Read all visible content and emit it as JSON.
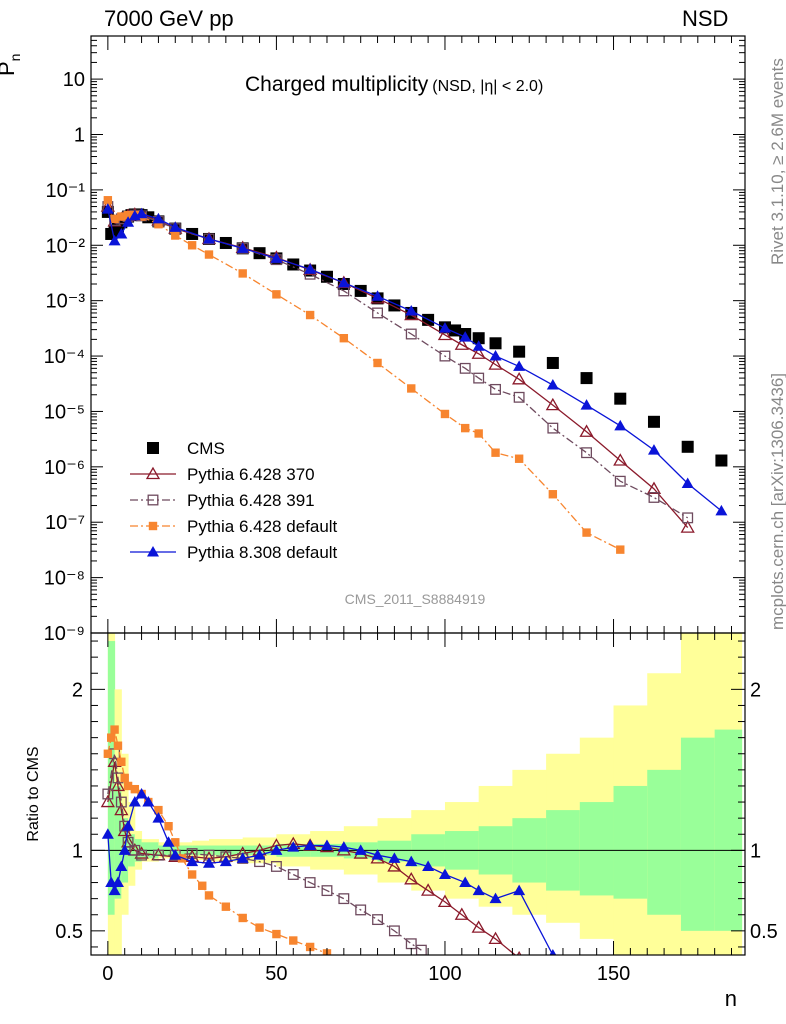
{
  "header": {
    "left": "7000 GeV pp",
    "right": "NSD",
    "side_top": "Rivet 3.1.10, ≥ 2.6M events",
    "side_bottom": "mcplots.cern.ch [arXiv:1306.3436]"
  },
  "colors": {
    "cms": "#000000",
    "py370": "#8b1a2b",
    "py391": "#6e4a5e",
    "py6def": "#f7852f",
    "py8": "#0a14d8",
    "band_inner": "#99ff99",
    "band_outer": "#ffff99"
  },
  "chart_data": [
    {
      "type": "scatter",
      "title": "Charged multiplicity",
      "title_sub": "(NSD, |η| < 2.0)",
      "ylabel": "P",
      "ylabel_sub": "n",
      "xlabel": "n",
      "log_y": true,
      "xlim": [
        -5,
        189
      ],
      "ylim": [
        1e-09,
        60
      ],
      "ytick_labels": [
        "10",
        "1",
        "10⁻¹",
        "10⁻²",
        "10⁻³",
        "10⁻⁴",
        "10⁻⁵",
        "10⁻⁶",
        "10⁻⁷",
        "10⁻⁸",
        "10⁻⁹"
      ],
      "watermark": "CMS_2011_S8884919",
      "legend_position": "lower-left",
      "series": [
        {
          "name": "CMS",
          "key": "cms",
          "marker": "filled-square",
          "x": [
            0,
            1,
            2,
            3,
            4,
            5,
            6,
            7,
            8,
            9,
            10,
            12,
            15,
            20,
            25,
            30,
            35,
            40,
            45,
            50,
            55,
            60,
            65,
            70,
            75,
            80,
            85,
            90,
            95,
            100,
            103,
            106,
            110,
            115,
            122,
            132,
            142,
            152,
            162,
            172,
            182
          ],
          "y": [
            0.04,
            0.016,
            0.018,
            0.022,
            0.026,
            0.03,
            0.033,
            0.035,
            0.036,
            0.036,
            0.035,
            0.032,
            0.027,
            0.02,
            0.016,
            0.013,
            0.011,
            0.0088,
            0.0072,
            0.0058,
            0.0045,
            0.0035,
            0.0027,
            0.002,
            0.0015,
            0.0011,
            0.00082,
            0.0006,
            0.00045,
            0.00033,
            0.00029,
            0.00025,
            0.00021,
            0.00017,
            0.00012,
            7.5e-05,
            4e-05,
            1.7e-05,
            6.5e-06,
            2.3e-06,
            1.3e-06
          ]
        },
        {
          "name": "Pythia 6.428 370",
          "key": "py370",
          "marker": "open-triangle",
          "x": [
            0,
            2,
            4,
            6,
            8,
            10,
            15,
            20,
            30,
            40,
            50,
            60,
            70,
            80,
            90,
            100,
            105,
            110,
            115,
            122,
            132,
            142,
            152,
            162,
            172
          ],
          "y": [
            0.05,
            0.027,
            0.03,
            0.034,
            0.036,
            0.035,
            0.028,
            0.02,
            0.013,
            0.009,
            0.006,
            0.0036,
            0.0021,
            0.0011,
            0.00055,
            0.00024,
            0.00016,
            0.00011,
            7e-05,
            3.8e-05,
            1.3e-05,
            4.3e-06,
            1.3e-06,
            4e-07,
            8e-08
          ]
        },
        {
          "name": "Pythia 6.428 391",
          "key": "py391",
          "marker": "open-square",
          "x": [
            0,
            2,
            4,
            6,
            8,
            10,
            15,
            20,
            30,
            40,
            50,
            60,
            70,
            80,
            90,
            100,
            106,
            110,
            115,
            122,
            132,
            142,
            152,
            162,
            172
          ],
          "y": [
            0.05,
            0.028,
            0.03,
            0.033,
            0.035,
            0.034,
            0.027,
            0.02,
            0.013,
            0.0088,
            0.0055,
            0.003,
            0.0015,
            0.0006,
            0.00025,
            0.0001,
            6e-05,
            4e-05,
            2.5e-05,
            1.8e-05,
            5e-06,
            1.8e-06,
            5.5e-07,
            2.8e-07,
            1.2e-07
          ]
        },
        {
          "name": "Pythia 6.428 default",
          "key": "py6def",
          "marker": "filled-square-small",
          "x": [
            0,
            2,
            4,
            6,
            8,
            10,
            15,
            20,
            25,
            30,
            40,
            50,
            60,
            70,
            80,
            90,
            100,
            106,
            110,
            115,
            122,
            132,
            142,
            152
          ],
          "y": [
            0.065,
            0.03,
            0.033,
            0.035,
            0.035,
            0.033,
            0.024,
            0.015,
            0.01,
            0.0068,
            0.0031,
            0.0013,
            0.00055,
            0.00021,
            7.5e-05,
            2.6e-05,
            9e-06,
            5e-06,
            4e-06,
            1.8e-06,
            1.4e-06,
            3.2e-07,
            6.5e-08,
            3.2e-08
          ]
        },
        {
          "name": "Pythia 8.308 default",
          "key": "py8",
          "marker": "filled-triangle",
          "x": [
            0,
            2,
            4,
            6,
            8,
            10,
            15,
            20,
            30,
            40,
            50,
            60,
            70,
            80,
            90,
            100,
            106,
            110,
            115,
            122,
            132,
            142,
            152,
            162,
            172,
            182
          ],
          "y": [
            0.045,
            0.012,
            0.016,
            0.026,
            0.034,
            0.037,
            0.03,
            0.021,
            0.013,
            0.0088,
            0.0058,
            0.0037,
            0.0021,
            0.0012,
            0.00065,
            0.00032,
            0.00022,
            0.00015,
            0.0001,
            6.5e-05,
            3e-05,
            1.3e-05,
            5.5e-06,
            2e-06,
            5e-07,
            1.6e-07
          ]
        }
      ]
    },
    {
      "type": "scatter",
      "ylabel": "Ratio to CMS",
      "xlabel": "n",
      "xlim": [
        -5,
        189
      ],
      "ylim": [
        0.35,
        2.35
      ],
      "ytick_labels": [
        "0.5",
        "1",
        "2"
      ],
      "xtick_labels": [
        "0",
        "50",
        "100",
        "150"
      ],
      "bands": {
        "edges": [
          0,
          2,
          4,
          6,
          8,
          10,
          15,
          20,
          25,
          30,
          40,
          50,
          60,
          70,
          80,
          90,
          100,
          110,
          120,
          130,
          140,
          150,
          160,
          170,
          180,
          188
        ],
        "inner_lo": [
          0.6,
          0.7,
          0.8,
          0.9,
          0.93,
          0.95,
          0.97,
          0.97,
          0.97,
          0.97,
          0.97,
          0.96,
          0.96,
          0.95,
          0.93,
          0.9,
          0.88,
          0.85,
          0.8,
          0.75,
          0.72,
          0.7,
          0.6,
          0.5,
          0.5
        ],
        "inner_hi": [
          2.3,
          1.4,
          1.2,
          1.1,
          1.07,
          1.05,
          1.03,
          1.03,
          1.03,
          1.03,
          1.03,
          1.04,
          1.04,
          1.05,
          1.06,
          1.1,
          1.12,
          1.15,
          1.2,
          1.25,
          1.3,
          1.4,
          1.5,
          1.7,
          1.75
        ],
        "outer_lo": [
          0.35,
          0.35,
          0.6,
          0.78,
          0.88,
          0.93,
          0.95,
          0.95,
          0.94,
          0.93,
          0.92,
          0.9,
          0.88,
          0.85,
          0.8,
          0.75,
          0.7,
          0.65,
          0.6,
          0.55,
          0.45,
          0.35,
          0.35,
          0.35,
          0.35
        ],
        "outer_hi": [
          2.35,
          2.0,
          1.6,
          1.3,
          1.12,
          1.07,
          1.05,
          1.05,
          1.06,
          1.07,
          1.08,
          1.1,
          1.12,
          1.15,
          1.2,
          1.25,
          1.3,
          1.4,
          1.5,
          1.6,
          1.7,
          1.9,
          2.1,
          2.35,
          2.35
        ]
      },
      "series": [
        {
          "name": "Pythia 6.428 370",
          "key": "py370",
          "marker": "open-triangle",
          "x": [
            0,
            2,
            3,
            4,
            5,
            6,
            8,
            10,
            15,
            20,
            25,
            30,
            35,
            40,
            45,
            50,
            55,
            60,
            65,
            70,
            75,
            80,
            85,
            90,
            95,
            100,
            105,
            110,
            115,
            122
          ],
          "y": [
            1.3,
            1.55,
            1.4,
            1.25,
            1.12,
            1.05,
            1.0,
            0.98,
            0.97,
            0.96,
            0.96,
            0.95,
            0.96,
            0.98,
            1.0,
            1.03,
            1.04,
            1.03,
            1.02,
            1.0,
            0.98,
            0.95,
            0.9,
            0.82,
            0.75,
            0.68,
            0.6,
            0.52,
            0.45,
            0.33
          ]
        },
        {
          "name": "Pythia 6.428 391",
          "key": "py391",
          "marker": "open-square",
          "x": [
            0,
            2,
            3,
            4,
            5,
            6,
            8,
            10,
            15,
            20,
            25,
            30,
            35,
            40,
            45,
            50,
            55,
            60,
            65,
            70,
            75,
            80,
            85,
            90,
            93
          ],
          "y": [
            1.35,
            1.6,
            1.45,
            1.3,
            1.15,
            1.05,
            1.0,
            0.97,
            0.97,
            0.97,
            0.98,
            0.97,
            0.96,
            0.95,
            0.93,
            0.9,
            0.85,
            0.8,
            0.75,
            0.7,
            0.63,
            0.57,
            0.5,
            0.42,
            0.38
          ]
        },
        {
          "name": "Pythia 6.428 default",
          "key": "py6def",
          "marker": "filled-square-small",
          "x": [
            0,
            1,
            2,
            3,
            4,
            5,
            6,
            8,
            10,
            12,
            15,
            18,
            20,
            22,
            25,
            28,
            30,
            35,
            40,
            45,
            50,
            55,
            60,
            65
          ],
          "y": [
            1.6,
            1.7,
            1.75,
            1.65,
            1.55,
            1.45,
            1.4,
            1.38,
            1.35,
            1.3,
            1.25,
            1.15,
            1.05,
            0.95,
            0.85,
            0.78,
            0.72,
            0.65,
            0.58,
            0.52,
            0.48,
            0.44,
            0.4,
            0.36
          ]
        },
        {
          "name": "Pythia 8.308 default",
          "key": "py8",
          "marker": "filled-triangle",
          "x": [
            0,
            1,
            2,
            3,
            4,
            5,
            6,
            8,
            10,
            12,
            15,
            18,
            20,
            25,
            30,
            35,
            40,
            45,
            50,
            55,
            60,
            65,
            70,
            75,
            80,
            85,
            90,
            95,
            100,
            106,
            110,
            115,
            122,
            132
          ],
          "y": [
            1.1,
            0.8,
            0.75,
            0.8,
            0.9,
            1.0,
            1.15,
            1.3,
            1.35,
            1.3,
            1.2,
            1.05,
            0.97,
            0.93,
            0.92,
            0.93,
            0.95,
            0.97,
            1.0,
            1.02,
            1.03,
            1.03,
            1.02,
            1.0,
            0.97,
            0.95,
            0.93,
            0.9,
            0.85,
            0.8,
            0.75,
            0.7,
            0.75,
            0.35
          ]
        }
      ]
    }
  ]
}
